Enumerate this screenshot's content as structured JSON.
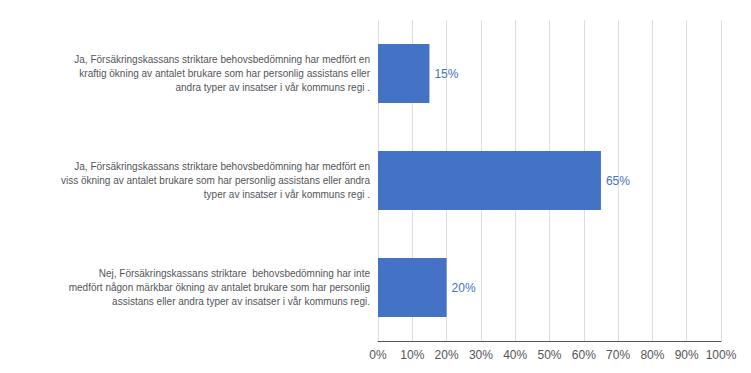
{
  "chart_data": {
    "type": "bar",
    "orientation": "horizontal",
    "categories": [
      "Ja, Försäkringskassans striktare behovsbedömning har medfört en\nkraftig ökning av antalet brukare som har personlig assistans eller\nandra typer av insatser i vår kommuns regi .",
      "Ja, Försäkringskassans striktare behovsbedömning har medfört en\nviss ökning av antalet brukare som har personlig assistans eller andra\ntyper av insatser i vår kommuns regi .",
      "Nej, Försäkringskassans striktare  behovsbedömning har inte\nmedfört någon märkbar ökning av antalet brukare som har personlig\nassistans eller andra typer av insatser i vår kommuns regi."
    ],
    "values": [
      0.15,
      0.65,
      0.2
    ],
    "value_labels": [
      "15%",
      "65%",
      "20%"
    ],
    "data_labels": true,
    "color": "#4472C4",
    "xlim": [
      0,
      1.0
    ],
    "xticks": [
      {
        "value": 0.0,
        "label": "0%"
      },
      {
        "value": 0.1,
        "label": "10%"
      },
      {
        "value": 0.2,
        "label": "20%"
      },
      {
        "value": 0.3,
        "label": "30%"
      },
      {
        "value": 0.4,
        "label": "40%"
      },
      {
        "value": 0.5,
        "label": "50%"
      },
      {
        "value": 0.6,
        "label": "60%"
      },
      {
        "value": 0.7,
        "label": "70%"
      },
      {
        "value": 0.8,
        "label": "80%"
      },
      {
        "value": 0.9,
        "label": "90%"
      },
      {
        "value": 1.0,
        "label": "100%"
      }
    ],
    "grid": true
  }
}
